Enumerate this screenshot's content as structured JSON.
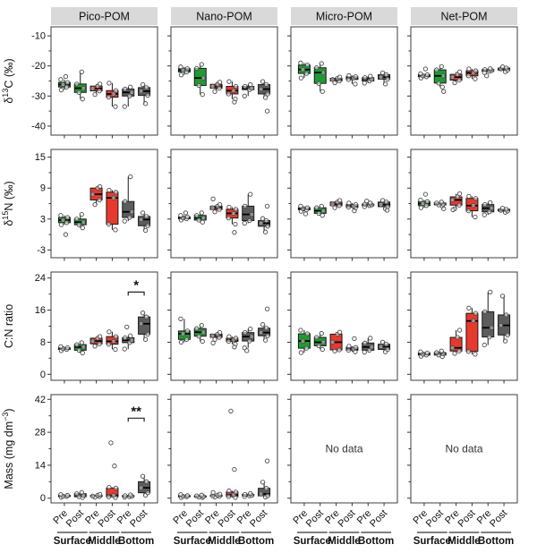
{
  "figure_title": "POM boxplot grid",
  "no_data_text": "No data",
  "chart_data": {
    "type": "boxplot-grid",
    "columns": [
      "Pico-POM",
      "Nano-POM",
      "Micro-POM",
      "Net-POM"
    ],
    "x_group_labels": [
      "Surface",
      "Middle",
      "Bottom"
    ],
    "x_tick_labels": [
      "Pre",
      "Post",
      "Pre",
      "Post",
      "Pre",
      "Post"
    ],
    "group_fills": [
      "#1e9b33",
      "#e8392e",
      "#5c5c5c"
    ],
    "colors": {
      "header_bg": "#d9d9d9",
      "panel_border": "#3c3c3c",
      "box_stroke": "#1a1a1a",
      "median": "#000000",
      "point_stroke": "#4a4a4a",
      "tick": "#333333",
      "text": "#111111",
      "group_line": "#555555"
    },
    "rows": [
      {
        "ylabel_plain": "d13C (permil)",
        "label": [
          {
            "t": "δ"
          },
          {
            "t": "13",
            "sup": true
          },
          {
            "t": "C (‰)"
          }
        ],
        "ticks": [
          -10,
          -20,
          -30,
          -40
        ],
        "ylim": [
          -43,
          -7
        ]
      },
      {
        "ylabel_plain": "d15N (permil)",
        "label": [
          {
            "t": "δ"
          },
          {
            "t": "15",
            "sup": true
          },
          {
            "t": "N (‰)"
          }
        ],
        "ticks": [
          15,
          9,
          3,
          -3
        ],
        "ylim": [
          -4.5,
          16.5
        ]
      },
      {
        "ylabel_plain": "C:N ratio",
        "label": [
          {
            "t": "C:N ratio"
          }
        ],
        "ticks": [
          0,
          8,
          16,
          24
        ],
        "ylim": [
          -1.5,
          25.5
        ]
      },
      {
        "ylabel_plain": "Mass (mg dm-3)",
        "label": [
          {
            "t": "Mass (mg dm"
          },
          {
            "t": "−3",
            "sup": true
          },
          {
            "t": ")"
          }
        ],
        "ticks": [
          0,
          14,
          28,
          42
        ],
        "ylim": [
          -2,
          44
        ]
      }
    ],
    "box_stat_order": [
      "whisker_low",
      "q1",
      "median",
      "q3",
      "whisker_high"
    ],
    "panels": [
      [
        {
          "boxes": [
            [
              -28,
              -27,
              -26.2,
              -25.5,
              -24.5
            ],
            [
              -31,
              -28.8,
              -27.4,
              -26,
              -22
            ],
            [
              -29.5,
              -28.3,
              -27.5,
              -26.7,
              -26
            ],
            [
              -33.5,
              -30.4,
              -29.3,
              -28.2,
              -25.7
            ],
            [
              -33.5,
              -30,
              -28.8,
              -27.7,
              -27
            ],
            [
              -32.5,
              -29.8,
              -28.4,
              -27.2,
              -26.2
            ]
          ],
          "outliers": [
            [
              -23.5
            ],
            [],
            [],
            [],
            [],
            []
          ]
        },
        {
          "boxes": [
            [
              -23,
              -22,
              -21.4,
              -20.9,
              -20.3
            ],
            [
              -29.5,
              -26.5,
              -24,
              -20.8,
              -19.5
            ],
            [
              -28.5,
              -27.4,
              -26.8,
              -26.1,
              -25.4
            ],
            [
              -31,
              -29.3,
              -28.2,
              -26.8,
              -25.2
            ],
            [
              -30,
              -27.9,
              -27.4,
              -26.8,
              -26.2
            ],
            [
              -30.5,
              -29.3,
              -27.7,
              -26.2,
              -25.2
            ]
          ],
          "outliers": [
            [],
            [],
            [],
            [
              -32
            ],
            [],
            [
              -35
            ]
          ]
        },
        {
          "boxes": [
            [
              -24,
              -22.5,
              -21.2,
              -19.7,
              -19
            ],
            [
              -28.5,
              -25.8,
              -22.2,
              -20.6,
              -19.2
            ],
            [
              -25.6,
              -25,
              -24.5,
              -24.1,
              -23.7
            ],
            [
              -26,
              -24.5,
              -24,
              -23.6,
              -23.2
            ],
            [
              -25.7,
              -25,
              -24.4,
              -23.9,
              -23.4
            ],
            [
              -26,
              -24.4,
              -23.7,
              -22.9,
              -22.3
            ]
          ],
          "outliers": [
            [],
            [],
            [],
            [],
            [],
            []
          ]
        },
        {
          "boxes": [
            [
              -24,
              -23.6,
              -23.3,
              -22.9,
              -22.6
            ],
            [
              -27,
              -25.7,
              -23.3,
              -21.3,
              -20.2
            ],
            [
              -25.6,
              -24.7,
              -23.7,
              -22.8,
              -22
            ],
            [
              -24.3,
              -23.3,
              -22.3,
              -21.6,
              -21
            ],
            [
              -22.2,
              -21.8,
              -21.5,
              -21.2,
              -20.9
            ],
            [
              -21.9,
              -21.4,
              -21,
              -20.7,
              -20.3
            ]
          ],
          "outliers": [
            [
              -21
            ],
            [
              -28.5
            ],
            [],
            [],
            [
              -23.3
            ],
            []
          ]
        }
      ],
      [
        {
          "boxes": [
            [
              1.9,
              2.3,
              2.8,
              3.3,
              3.7
            ],
            [
              1.3,
              1.9,
              2.4,
              3,
              3.9
            ],
            [
              5.8,
              6.7,
              7.8,
              9,
              9.3
            ],
            [
              0.9,
              2,
              7.1,
              8.2,
              8.6
            ],
            [
              2.6,
              3.3,
              4.4,
              6.4,
              11.2
            ],
            [
              0.8,
              1.7,
              2.9,
              3.5,
              4.2
            ]
          ],
          "outliers": [
            [
              0
            ],
            [],
            [],
            [],
            [],
            []
          ]
        },
        {
          "boxes": [
            [
              2.8,
              3.05,
              3.2,
              3.4,
              3.7
            ],
            [
              2.4,
              2.8,
              3.2,
              3.7,
              4.2
            ],
            [
              4.4,
              4.85,
              5.2,
              5.5,
              5.8
            ],
            [
              2,
              3.2,
              4.1,
              4.9,
              5.3
            ],
            [
              2.2,
              2.7,
              3.9,
              5.5,
              7.8
            ],
            [
              0.5,
              1.6,
              2.2,
              2.7,
              3.1
            ]
          ],
          "outliers": [
            [
              4.2
            ],
            [],
            [
              6.9
            ],
            [
              0.4
            ],
            [],
            [
              5.5
            ]
          ]
        },
        {
          "boxes": [
            [
              4.5,
              4.8,
              5,
              5.2,
              5.5
            ],
            [
              3.7,
              4.1,
              4.6,
              5.2,
              5.5
            ],
            [
              5.2,
              5.6,
              5.9,
              6.3,
              6.6
            ],
            [
              5.1,
              5.3,
              5.5,
              5.8,
              6.1
            ],
            [
              5.4,
              5.6,
              5.75,
              5.9,
              6.1
            ],
            [
              5,
              5.4,
              5.8,
              6.3,
              6.6
            ]
          ],
          "outliers": [
            [
              4
            ],
            [],
            [],
            [
              4.6
            ],
            [
              6.5
            ],
            [
              4.7
            ]
          ]
        },
        {
          "boxes": [
            [
              5.2,
              5.6,
              6,
              6.4,
              6.7
            ],
            [
              5.5,
              5.75,
              5.9,
              6.1,
              6.3
            ],
            [
              5,
              5.7,
              6.7,
              7.3,
              7.9
            ],
            [
              3.4,
              4.6,
              5.6,
              7,
              7.4
            ],
            [
              3.8,
              4.4,
              5.1,
              5.8,
              6.2
            ],
            [
              4.3,
              4.55,
              4.7,
              4.9,
              5.1
            ]
          ],
          "outliers": [
            [
              7.8
            ],
            [
              5
            ],
            [
              4.8
            ],
            [],
            [],
            []
          ]
        }
      ],
      [
        {
          "boxes": [
            [
              5.9,
              6.2,
              6.4,
              6.6,
              6.9
            ],
            [
              5.3,
              6,
              6.8,
              7.4,
              7.9
            ],
            [
              7,
              7.6,
              8.3,
              9,
              9.4
            ],
            [
              6.2,
              7.5,
              8.2,
              9.4,
              10.6
            ],
            [
              6.3,
              7.9,
              8.5,
              9.1,
              9.6
            ],
            [
              8.7,
              10,
              12.6,
              14.3,
              15.3
            ]
          ],
          "outliers": [
            [],
            [],
            [],
            [],
            [
              11.8
            ],
            []
          ],
          "sig": {
            "between": [
              4,
              5
            ],
            "label": "*",
            "at": 20.5
          }
        },
        {
          "boxes": [
            [
              8,
              8.7,
              10.1,
              10.8,
              13.8
            ],
            [
              8.2,
              9.5,
              10.5,
              11.4,
              12.2
            ],
            [
              8.7,
              9.2,
              9.6,
              10,
              10.4
            ],
            [
              7.5,
              8.2,
              8.6,
              9,
              9.4
            ],
            [
              6.6,
              8.3,
              9.4,
              10.4,
              11.3
            ],
            [
              8.5,
              9.6,
              10.4,
              11.5,
              12.4
            ]
          ],
          "outliers": [
            [],
            [],
            [
              7.8
            ],
            [
              6.8
            ],
            [
              5.9
            ],
            [
              16.3
            ]
          ]
        },
        {
          "boxes": [
            [
              5.4,
              6.5,
              8.3,
              10.1,
              11
            ],
            [
              6.2,
              7.1,
              8,
              9.2,
              10.2
            ],
            [
              5.8,
              6.1,
              8,
              10,
              10.5
            ],
            [
              5.6,
              6,
              6.3,
              6.7,
              7
            ],
            [
              5.5,
              6,
              6.8,
              7.8,
              9
            ],
            [
              5.6,
              6.2,
              6.9,
              7.5,
              8
            ]
          ],
          "outliers": [
            [],
            [],
            [],
            [
              8.9
            ],
            [],
            []
          ]
        },
        {
          "boxes": [
            [
              4.5,
              4.8,
              5,
              5.3,
              5.6
            ],
            [
              4.4,
              4.8,
              5.1,
              5.4,
              5.8
            ],
            [
              5.2,
              5.8,
              6.6,
              9.2,
              11
            ],
            [
              5,
              5.7,
              13.3,
              15.2,
              16.5
            ],
            [
              7.3,
              9.3,
              11.6,
              15.6,
              20.5
            ],
            [
              8.3,
              9.8,
              12.2,
              14.8,
              19.5
            ]
          ],
          "outliers": [
            [],
            [],
            [],
            [],
            [],
            []
          ]
        }
      ],
      [
        {
          "boxes": [
            [
              0.4,
              0.7,
              0.9,
              1.2,
              1.5
            ],
            [
              0.3,
              0.6,
              1.2,
              1.9,
              2.4
            ],
            [
              0.4,
              0.7,
              0.9,
              1.2,
              1.6
            ],
            [
              0.3,
              0.6,
              1.2,
              4.3,
              4.6
            ],
            [
              0.4,
              0.6,
              0.8,
              1.1,
              1.4
            ],
            [
              1.3,
              2.3,
              4.4,
              7,
              9.3
            ]
          ],
          "outliers": [
            [],
            [],
            [],
            [
              13.7,
              23.5
            ],
            [],
            []
          ],
          "sig": {
            "between": [
              4,
              5
            ],
            "label": "**",
            "at": 34
          }
        },
        {
          "boxes": [
            [
              0.3,
              0.6,
              0.8,
              1.1,
              1.5
            ],
            [
              0.3,
              0.5,
              0.7,
              1,
              1.3
            ],
            [
              0.5,
              0.8,
              1,
              1.3,
              1.7
            ],
            [
              0.3,
              0.7,
              1.4,
              2.6,
              3.1
            ],
            [
              0.7,
              1,
              1.2,
              1.6,
              2
            ],
            [
              0.5,
              1,
              1.8,
              4.2,
              6.8
            ]
          ],
          "outliers": [
            [],
            [],
            [
              2.4
            ],
            [
              12.2,
              37
            ],
            [],
            [
              15.8
            ]
          ]
        },
        null,
        null
      ]
    ]
  }
}
